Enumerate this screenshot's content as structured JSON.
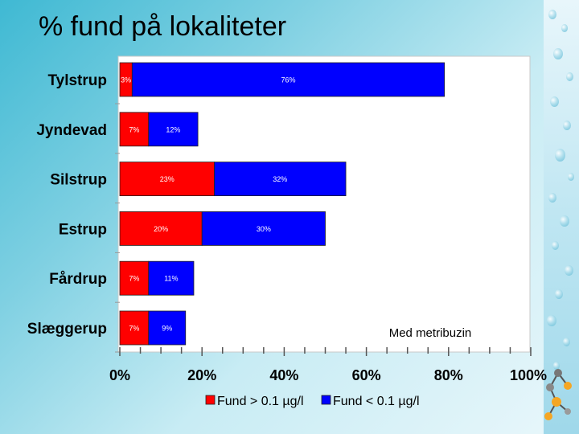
{
  "slide": {
    "title": "% fund på lokaliteter",
    "annotation": "Med metribuzin"
  },
  "chart_data": {
    "type": "bar",
    "orientation": "horizontal",
    "stacked": true,
    "categories": [
      "Tylstrup",
      "Jyndevad",
      "Silstrup",
      "Estrup",
      "Fårdrup",
      "Slæggerup"
    ],
    "series": [
      {
        "name": "Fund > 0.1 µg/l",
        "color": "#ff0000",
        "values": [
          3,
          7,
          23,
          20,
          7,
          7
        ],
        "labels": [
          "3%",
          "7%",
          "23%",
          "20%",
          "7%",
          "7%"
        ]
      },
      {
        "name": "Fund < 0.1 µg/l",
        "color": "#0000ff",
        "values": [
          76,
          12,
          32,
          30,
          11,
          9
        ],
        "labels": [
          "76%",
          "12%",
          "32%",
          "30%",
          "11%",
          "9%"
        ]
      }
    ],
    "xlim": [
      0,
      100
    ],
    "x_ticks": [
      "0%",
      "20%",
      "40%",
      "60%",
      "80%",
      "100%"
    ],
    "legend_position": "bottom-center",
    "grid": false
  }
}
